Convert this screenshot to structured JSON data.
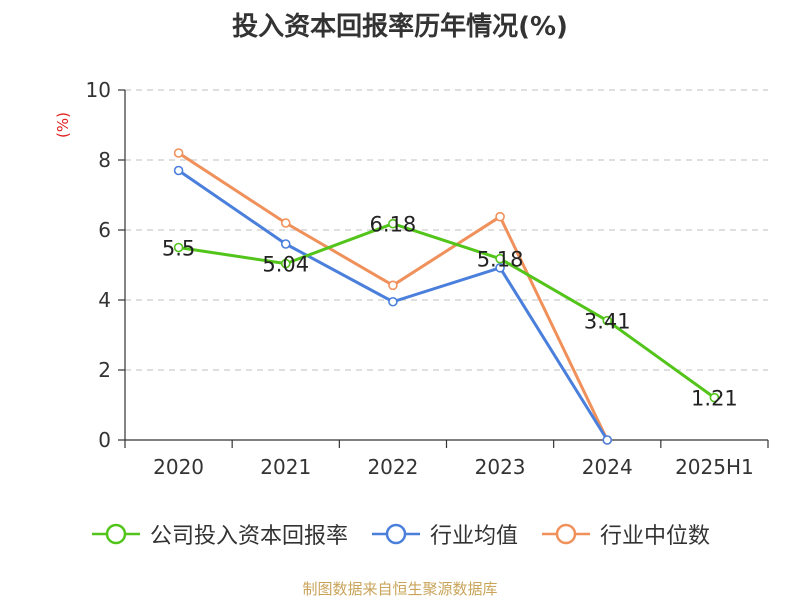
{
  "title": "投入资本回报率历年情况(%)",
  "source_note": "制图数据来自恒生聚源数据库",
  "chart_data": {
    "type": "line",
    "title": "投入资本回报率历年情况(%)",
    "ylabel": "(%)",
    "xlabel": "",
    "categories": [
      "2020",
      "2021",
      "2022",
      "2023",
      "2024",
      "2025H1"
    ],
    "ylim": [
      0,
      10
    ],
    "yticks": [
      0,
      2,
      4,
      6,
      8,
      10
    ],
    "grid": true,
    "legend_position": "bottom",
    "series": [
      {
        "name": "公司投入资本回报率",
        "color": "#52c41a",
        "values": [
          5.5,
          5.04,
          6.18,
          5.18,
          3.41,
          1.21
        ],
        "labels": [
          "5.5",
          "5.04",
          "6.18",
          "5.18",
          "3.41",
          "1.21"
        ]
      },
      {
        "name": "行业均值",
        "color": "#4a7fdc",
        "values": [
          7.7,
          5.6,
          3.95,
          4.92,
          0.0,
          null
        ]
      },
      {
        "name": "行业中位数",
        "color": "#f0905a",
        "values": [
          8.2,
          6.2,
          4.42,
          6.38,
          0.0,
          null
        ]
      }
    ]
  }
}
